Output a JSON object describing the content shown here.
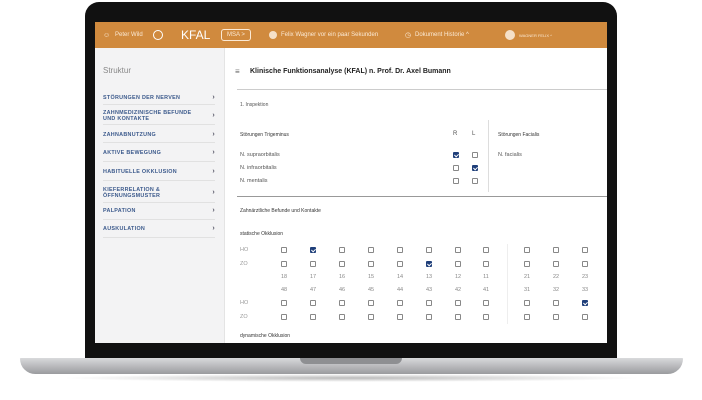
{
  "header": {
    "user": "Peter Wild",
    "app": "KFAL",
    "msa_button": "MSA >",
    "activity": "Felix Wagner vor ein paar Sekunden",
    "history": "Dokument Historie ^",
    "account": "WAGNER FELIX ^",
    "color": "#d08a3e"
  },
  "sidebar": {
    "title": "Struktur",
    "items": [
      {
        "label": "STÖRUNGEN DER NERVEN"
      },
      {
        "label": "ZAHNMEDIZINISCHE BEFUNDE UND KONTAKTE"
      },
      {
        "label": "ZAHNABNUTZUNG"
      },
      {
        "label": "AKTIVE BEWEGUNG"
      },
      {
        "label": "HABITUELLE OKKLUSION"
      },
      {
        "label": "KIEFERRELATION & ÖFFNUNGSMUSTER"
      },
      {
        "label": "PALPATION"
      },
      {
        "label": "AUSKULATION"
      }
    ]
  },
  "main": {
    "title": "Klinische Funktionsanalyse (KFAL) n. Prof. Dr. Axel Bumann",
    "section1": "1. Inspektion",
    "trigeminus": {
      "title": "Störungen Trigeminus",
      "col_r": "R",
      "col_l": "L",
      "rows": [
        {
          "label": "N. supraorbitalis",
          "r": true,
          "l": false
        },
        {
          "label": "N. infraorbitalis",
          "r": false,
          "l": true
        },
        {
          "label": "N. mentalis",
          "r": false,
          "l": false
        }
      ]
    },
    "facialis": {
      "title": "Störungen Facialis",
      "rows": [
        {
          "label": "N. facialis"
        }
      ]
    },
    "section2": "Zahnärztliche Befunde und Kontakte",
    "static_title": "statische Okklusion",
    "dynamic_title": "dynamische Okklusion",
    "upper_teeth": [
      "18",
      "17",
      "16",
      "15",
      "14",
      "13",
      "12",
      "11",
      "21",
      "22",
      "23"
    ],
    "lower_teeth": [
      "48",
      "47",
      "46",
      "45",
      "44",
      "43",
      "42",
      "41",
      "31",
      "32",
      "33"
    ],
    "rows": [
      {
        "label": "HO",
        "checked": [
          1
        ]
      },
      {
        "label": "ZO",
        "checked": [
          5
        ]
      },
      {
        "label": "HO",
        "checked": [
          10
        ]
      },
      {
        "label": "ZO",
        "checked": []
      }
    ]
  }
}
